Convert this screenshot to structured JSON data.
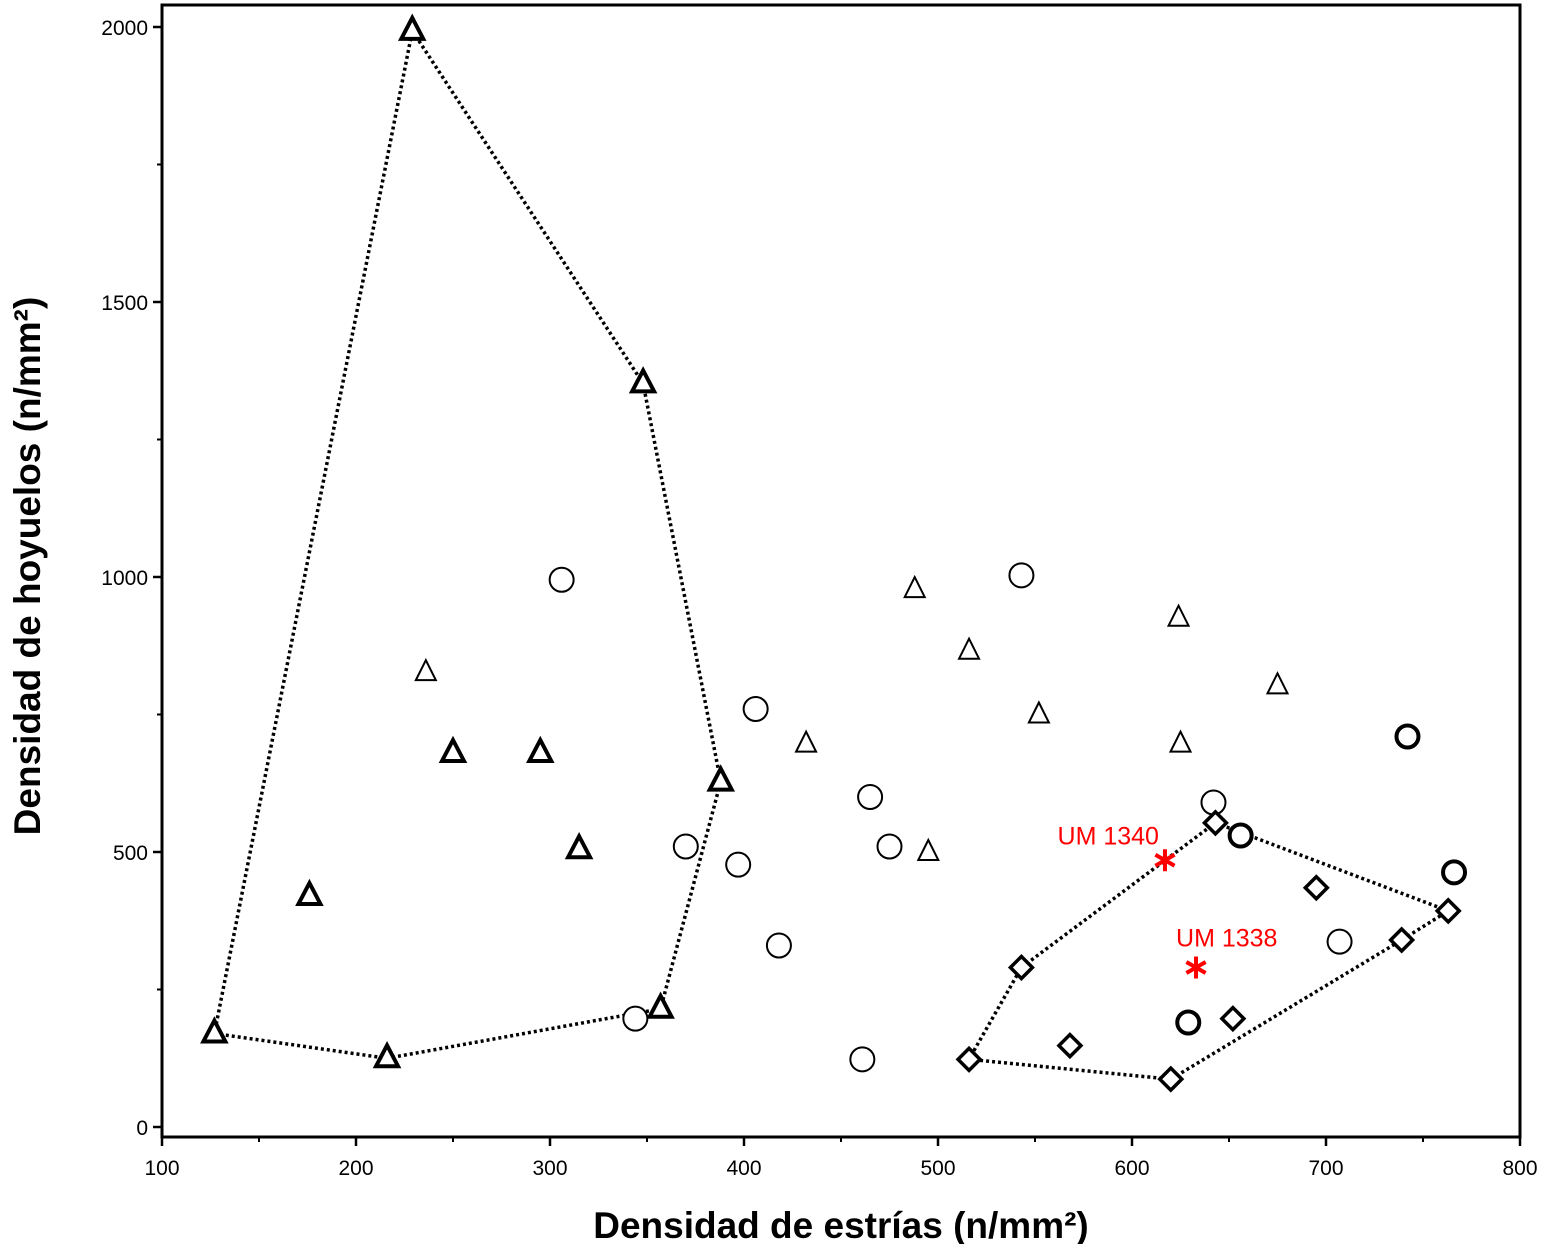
{
  "chart_data": {
    "type": "scatter",
    "title": "",
    "xlabel": "Densidad de estrías (n/mm²)",
    "ylabel": "Densidad de hoyuelos (n/mm²)",
    "xlim": [
      100,
      800
    ],
    "ylim": [
      -20,
      2020
    ],
    "x_ticks": [
      100,
      200,
      300,
      400,
      500,
      600,
      700,
      800
    ],
    "y_ticks": [
      0,
      500,
      1000,
      1500,
      2000
    ],
    "grid": false,
    "legend": "none",
    "series": [
      {
        "marker": "triangle-bold",
        "points": [
          {
            "x": 229,
            "y": 1993
          },
          {
            "x": 348,
            "y": 1352
          },
          {
            "x": 388,
            "y": 628
          },
          {
            "x": 357,
            "y": 215
          },
          {
            "x": 216,
            "y": 125
          },
          {
            "x": 127,
            "y": 170
          },
          {
            "x": 176,
            "y": 420
          },
          {
            "x": 250,
            "y": 680
          },
          {
            "x": 295,
            "y": 680
          },
          {
            "x": 315,
            "y": 505
          }
        ]
      },
      {
        "marker": "triangle",
        "points": [
          {
            "x": 236,
            "y": 827
          },
          {
            "x": 432,
            "y": 697
          },
          {
            "x": 488,
            "y": 978
          },
          {
            "x": 516,
            "y": 866
          },
          {
            "x": 552,
            "y": 750
          },
          {
            "x": 495,
            "y": 500
          },
          {
            "x": 624,
            "y": 926
          },
          {
            "x": 625,
            "y": 697
          },
          {
            "x": 675,
            "y": 803
          }
        ]
      },
      {
        "marker": "circle",
        "points": [
          {
            "x": 306,
            "y": 995
          },
          {
            "x": 344,
            "y": 197
          },
          {
            "x": 370,
            "y": 510
          },
          {
            "x": 397,
            "y": 477
          },
          {
            "x": 406,
            "y": 760
          },
          {
            "x": 418,
            "y": 330
          },
          {
            "x": 461,
            "y": 123
          },
          {
            "x": 465,
            "y": 600
          },
          {
            "x": 475,
            "y": 510
          },
          {
            "x": 543,
            "y": 1003
          },
          {
            "x": 642,
            "y": 590
          },
          {
            "x": 707,
            "y": 337
          }
        ]
      },
      {
        "marker": "circle-bold",
        "points": [
          {
            "x": 656,
            "y": 530
          },
          {
            "x": 742,
            "y": 710
          },
          {
            "x": 766,
            "y": 463
          },
          {
            "x": 629,
            "y": 190
          }
        ]
      },
      {
        "marker": "diamond-bold",
        "points": [
          {
            "x": 643,
            "y": 553
          },
          {
            "x": 763,
            "y": 393
          },
          {
            "x": 739,
            "y": 340
          },
          {
            "x": 620,
            "y": 87
          },
          {
            "x": 516,
            "y": 123
          },
          {
            "x": 543,
            "y": 290
          },
          {
            "x": 695,
            "y": 435
          },
          {
            "x": 652,
            "y": 197
          },
          {
            "x": 568,
            "y": 148
          }
        ]
      },
      {
        "marker": "asterisk-red",
        "points": [
          {
            "x": 617,
            "y": 485,
            "label": "UM 1340"
          },
          {
            "x": 633,
            "y": 290,
            "label": "UM 1338"
          }
        ]
      }
    ],
    "hulls": [
      {
        "style": "dotted",
        "vertices": [
          {
            "x": 229,
            "y": 1993
          },
          {
            "x": 348,
            "y": 1352
          },
          {
            "x": 388,
            "y": 628
          },
          {
            "x": 357,
            "y": 215
          },
          {
            "x": 216,
            "y": 125
          },
          {
            "x": 127,
            "y": 170
          }
        ]
      },
      {
        "style": "dotted",
        "vertices": [
          {
            "x": 643,
            "y": 553
          },
          {
            "x": 763,
            "y": 393
          },
          {
            "x": 739,
            "y": 340
          },
          {
            "x": 620,
            "y": 87
          },
          {
            "x": 516,
            "y": 123
          },
          {
            "x": 543,
            "y": 290
          }
        ]
      }
    ],
    "colors": {
      "markers": "#000000",
      "highlight": "#ff0000",
      "axes": "#000000"
    }
  }
}
